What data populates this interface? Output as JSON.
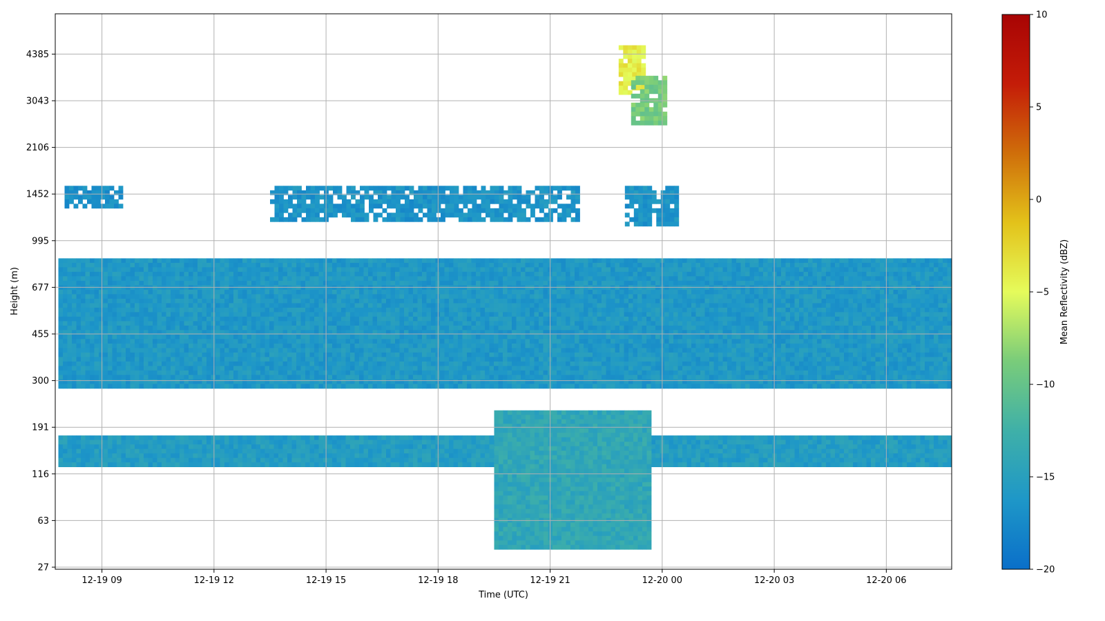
{
  "chart_data": {
    "type": "heatmap",
    "title": "",
    "xlabel": "Time (UTC)",
    "ylabel": "Height (m)",
    "grid": true,
    "x_range": [
      "2024-12-19 07:45",
      "2024-12-20 07:45"
    ],
    "x_ticks": [
      {
        "t": "2024-12-19 09:00",
        "label": "12-19 09"
      },
      {
        "t": "2024-12-19 12:00",
        "label": "12-19 12"
      },
      {
        "t": "2024-12-19 15:00",
        "label": "12-19 15"
      },
      {
        "t": "2024-12-19 18:00",
        "label": "12-19 18"
      },
      {
        "t": "2024-12-19 21:00",
        "label": "12-19 21"
      },
      {
        "t": "2024-12-20 00:00",
        "label": "12-20 00"
      },
      {
        "t": "2024-12-20 03:00",
        "label": "12-20 03"
      },
      {
        "t": "2024-12-20 06:00",
        "label": "12-20 06"
      }
    ],
    "y_ticks": [
      "27",
      "63",
      "116",
      "191",
      "300",
      "455",
      "677",
      "995",
      "1452",
      "2106",
      "3043",
      "4385"
    ],
    "colorbar": {
      "label": "Mean Reflectivity (dBZ)",
      "range": [
        -20,
        10
      ],
      "ticks": [
        "10",
        "5",
        "0",
        "−5",
        "−10",
        "−15",
        "−20"
      ],
      "tick_values": [
        10,
        5,
        0,
        -5,
        -10,
        -15,
        -20
      ],
      "stops": [
        "#0a6fc9",
        "#1e97c8",
        "#3fb0a8",
        "#79cc7a",
        "#e5fb5b",
        "#e3c21a",
        "#cf6e0a",
        "#c41c08",
        "#a80404"
      ]
    },
    "layers": [
      {
        "name": "low-cloud-deck",
        "t0": "2024-12-19 07:50",
        "t1": "2024-12-20 07:40",
        "h0": 290,
        "h1": 860,
        "dbz": -16
      },
      {
        "name": "boundary-band",
        "t0": "2024-12-19 07:50",
        "t1": "2024-12-20 07:40",
        "h0": 128,
        "h1": 175,
        "dbz": -15.5
      },
      {
        "name": "near-surface-plume",
        "t0": "2024-12-19 19:30",
        "t1": "2024-12-19 23:40",
        "h0": 40,
        "h1": 225,
        "dbz": -14
      },
      {
        "name": "upper-cloud-west",
        "t0": "2024-12-19 08:00",
        "t1": "2024-12-19 09:30",
        "h0": 1330,
        "h1": 1550,
        "dbz": -17
      },
      {
        "name": "upper-cloud-mid",
        "t0": "2024-12-19 13:30",
        "t1": "2024-12-19 21:45",
        "h0": 1200,
        "h1": 1550,
        "dbz": -16.5
      },
      {
        "name": "upper-cloud-east",
        "t0": "2024-12-19 23:00",
        "t1": "2024-12-20 00:20",
        "h0": 1150,
        "h1": 1550,
        "dbz": -16.5
      },
      {
        "name": "precip-cell-core",
        "t0": "2024-12-19 22:50",
        "t1": "2024-12-19 23:30",
        "h0": 3300,
        "h1": 4700,
        "dbz": -4
      },
      {
        "name": "precip-cell-tail",
        "t0": "2024-12-19 23:10",
        "t1": "2024-12-20 00:05",
        "h0": 2600,
        "h1": 3700,
        "dbz": -9
      }
    ]
  }
}
